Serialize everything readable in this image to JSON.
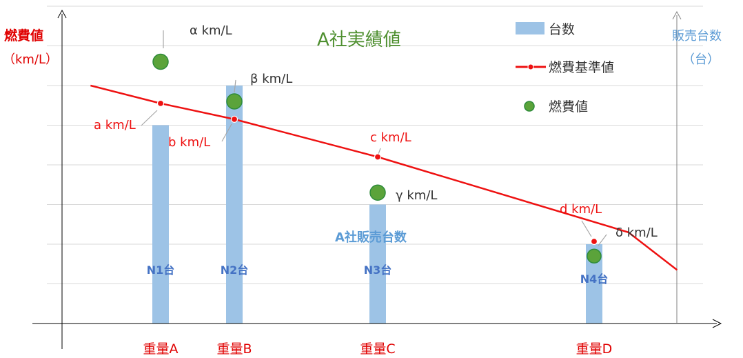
{
  "chart_data": {
    "type": "bar",
    "title": "A社実績値",
    "y_left_label": [
      "燃費値",
      "（km/L）"
    ],
    "y_right_label": [
      "販売台数",
      "（台）"
    ],
    "categories": [
      "重量A",
      "重量B",
      "重量C",
      "重量D"
    ],
    "ylim": [
      0,
      8
    ],
    "grid": true,
    "legend": {
      "position": "top-right",
      "items": [
        {
          "label": "台数",
          "kind": "bar"
        },
        {
          "label": "燃費基準値",
          "kind": "line"
        },
        {
          "label": "燃費値",
          "kind": "marker"
        }
      ]
    },
    "sales": {
      "values": [
        5,
        6,
        3,
        2
      ],
      "labels": [
        "N1台",
        "N2台",
        "N3台",
        "N4台"
      ],
      "annotation": "A社販売台数"
    },
    "fuel_values": {
      "values": [
        6.6,
        5.6,
        3.3,
        1.7
      ],
      "labels": [
        "α km/L",
        "β km/L",
        "γ km/L",
        "δ km/L"
      ]
    },
    "standard_line": {
      "points": [
        [
          -0.95,
          6.0
        ],
        [
          0,
          5.55
        ],
        [
          1,
          5.15
        ],
        [
          2,
          4.2
        ],
        [
          3.95,
          2.3
        ],
        [
          5.3,
          1.35
        ]
      ],
      "markers": [
        {
          "x": 0,
          "y": 5.55,
          "label": "a km/L"
        },
        {
          "x": 1,
          "y": 5.15,
          "label": "b km/L"
        },
        {
          "x": 2,
          "y": 4.2,
          "label": "c km/L"
        },
        {
          "x": 5.1,
          "y": 2.15,
          "label": "d km/L"
        }
      ]
    },
    "colors": {
      "bar": "#9dc3e6",
      "line": "#ee1111",
      "marker_fill": "#5ba33a",
      "marker_stroke": "#2e8b3a",
      "title": "#4e8f2f",
      "y_left_label": "#e00000",
      "y_right_label": "#5b9bd5",
      "bar_label": "#4472c4",
      "category": "#e00000",
      "grid": "#d9d9d9",
      "leader": "#a6a6a6"
    }
  }
}
